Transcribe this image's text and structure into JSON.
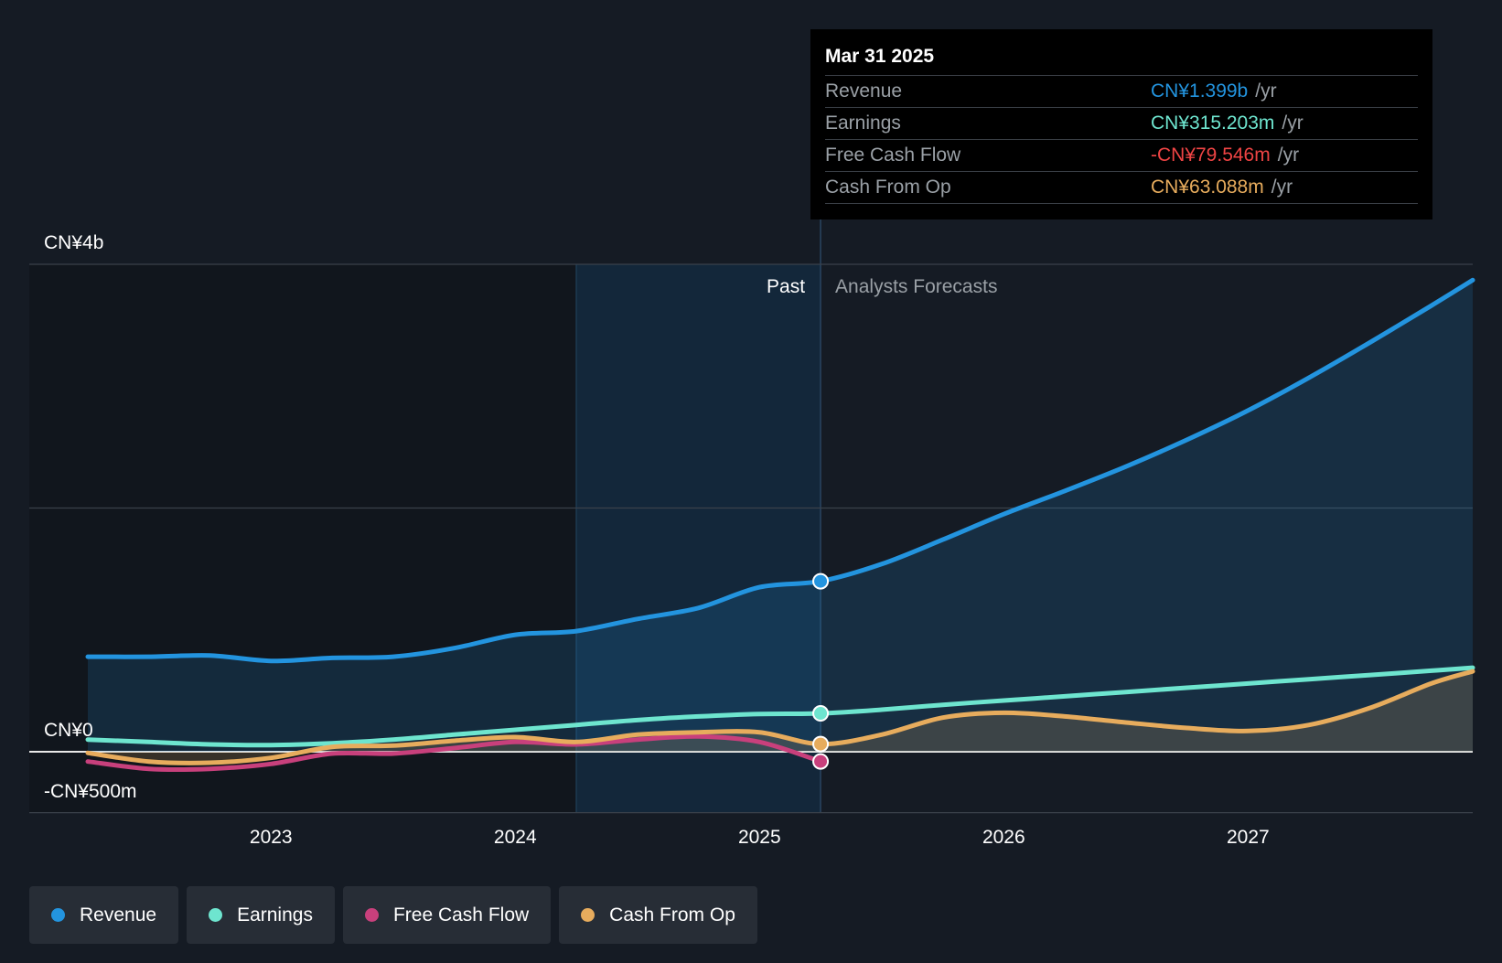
{
  "colors": {
    "background": "#151b24",
    "revenue": "#2394df",
    "earnings": "#6ee5cf",
    "free_cash_flow": "#c8407c",
    "cash_from_op": "#e7ac5d",
    "negative": "#ef4444",
    "muted": "#9aa0a6"
  },
  "tooltip": {
    "date": "Mar 31 2025",
    "rows": [
      {
        "label": "Revenue",
        "value": "CN¥1.399b",
        "unit": "/yr",
        "color": "#2394df"
      },
      {
        "label": "Earnings",
        "value": "CN¥315.203m",
        "unit": "/yr",
        "color": "#6ee5cf"
      },
      {
        "label": "Free Cash Flow",
        "value": "-CN¥79.546m",
        "unit": "/yr",
        "color": "#ef4444"
      },
      {
        "label": "Cash From Op",
        "value": "CN¥63.088m",
        "unit": "/yr",
        "color": "#e7ac5d"
      }
    ]
  },
  "legend": [
    {
      "label": "Revenue",
      "color": "#2394df"
    },
    {
      "label": "Earnings",
      "color": "#6ee5cf"
    },
    {
      "label": "Free Cash Flow",
      "color": "#c8407c"
    },
    {
      "label": "Cash From Op",
      "color": "#e7ac5d"
    }
  ],
  "chart_data": {
    "type": "line",
    "title": "",
    "xlabel": "",
    "ylabel": "",
    "ylim": [
      -500,
      4000
    ],
    "xlim": [
      2022.25,
      2027.92
    ],
    "y_tick_labels": [
      {
        "value": 4000,
        "label": "CN¥4b"
      },
      {
        "value": 0,
        "label": "CN¥0"
      },
      {
        "value": -500,
        "label": "-CN¥500m"
      }
    ],
    "gridlines": [
      4000,
      2000,
      0,
      -500
    ],
    "x_ticks": [
      {
        "value": 2023,
        "label": "2023"
      },
      {
        "value": 2024,
        "label": "2024"
      },
      {
        "value": 2025,
        "label": "2025"
      },
      {
        "value": 2026,
        "label": "2026"
      },
      {
        "value": 2027,
        "label": "2027"
      }
    ],
    "past_region_start": 2024.25,
    "divider_x": 2025.25,
    "region_labels": {
      "past": "Past",
      "forecast": "Analysts Forecasts"
    },
    "highlight_x": 2025.25,
    "series": [
      {
        "name": "Revenue",
        "key": "revenue",
        "color": "#2394df",
        "fill": true,
        "points": [
          [
            2022.25,
            780
          ],
          [
            2022.5,
            780
          ],
          [
            2022.75,
            790
          ],
          [
            2023,
            745
          ],
          [
            2023.25,
            770
          ],
          [
            2023.5,
            780
          ],
          [
            2023.75,
            850
          ],
          [
            2024,
            960
          ],
          [
            2024.25,
            990
          ],
          [
            2024.5,
            1090
          ],
          [
            2024.75,
            1180
          ],
          [
            2025,
            1350
          ],
          [
            2025.25,
            1399
          ],
          [
            2025.5,
            1540
          ],
          [
            2025.75,
            1740
          ],
          [
            2026,
            1950
          ],
          [
            2026.25,
            2140
          ],
          [
            2026.5,
            2340
          ],
          [
            2026.75,
            2560
          ],
          [
            2027,
            2800
          ],
          [
            2027.25,
            3070
          ],
          [
            2027.5,
            3360
          ],
          [
            2027.75,
            3660
          ],
          [
            2027.92,
            3870
          ]
        ]
      },
      {
        "name": "Earnings",
        "key": "earnings",
        "color": "#6ee5cf",
        "fill": false,
        "points": [
          [
            2022.25,
            100
          ],
          [
            2022.5,
            80
          ],
          [
            2022.75,
            60
          ],
          [
            2023,
            55
          ],
          [
            2023.25,
            70
          ],
          [
            2023.5,
            100
          ],
          [
            2023.75,
            140
          ],
          [
            2024,
            180
          ],
          [
            2024.25,
            220
          ],
          [
            2024.5,
            260
          ],
          [
            2024.75,
            290
          ],
          [
            2025,
            310
          ],
          [
            2025.25,
            315
          ],
          [
            2025.5,
            345
          ],
          [
            2025.75,
            385
          ],
          [
            2026,
            420
          ],
          [
            2026.25,
            455
          ],
          [
            2026.5,
            490
          ],
          [
            2026.75,
            525
          ],
          [
            2027,
            560
          ],
          [
            2027.25,
            595
          ],
          [
            2027.5,
            630
          ],
          [
            2027.75,
            665
          ],
          [
            2027.92,
            690
          ]
        ]
      },
      {
        "name": "Free Cash Flow",
        "key": "fcf",
        "color": "#c8407c",
        "fill": false,
        "points": [
          [
            2022.25,
            -80
          ],
          [
            2022.5,
            -140
          ],
          [
            2022.75,
            -140
          ],
          [
            2023,
            -100
          ],
          [
            2023.25,
            -15
          ],
          [
            2023.5,
            -15
          ],
          [
            2023.75,
            30
          ],
          [
            2024,
            80
          ],
          [
            2024.25,
            60
          ],
          [
            2024.5,
            100
          ],
          [
            2024.75,
            125
          ],
          [
            2025,
            80
          ],
          [
            2025.25,
            -79.546
          ]
        ]
      },
      {
        "name": "Cash From Op",
        "key": "cfo",
        "color": "#e7ac5d",
        "fill": true,
        "points": [
          [
            2022.25,
            -10
          ],
          [
            2022.5,
            -80
          ],
          [
            2022.75,
            -90
          ],
          [
            2023,
            -50
          ],
          [
            2023.25,
            40
          ],
          [
            2023.5,
            50
          ],
          [
            2023.75,
            90
          ],
          [
            2024,
            120
          ],
          [
            2024.25,
            80
          ],
          [
            2024.5,
            140
          ],
          [
            2024.75,
            160
          ],
          [
            2025,
            160
          ],
          [
            2025.25,
            63.088
          ],
          [
            2025.5,
            140
          ],
          [
            2025.75,
            280
          ],
          [
            2026,
            320
          ],
          [
            2026.25,
            290
          ],
          [
            2026.5,
            240
          ],
          [
            2026.75,
            195
          ],
          [
            2027,
            170
          ],
          [
            2027.25,
            220
          ],
          [
            2027.5,
            360
          ],
          [
            2027.75,
            560
          ],
          [
            2027.92,
            660
          ]
        ]
      }
    ]
  }
}
